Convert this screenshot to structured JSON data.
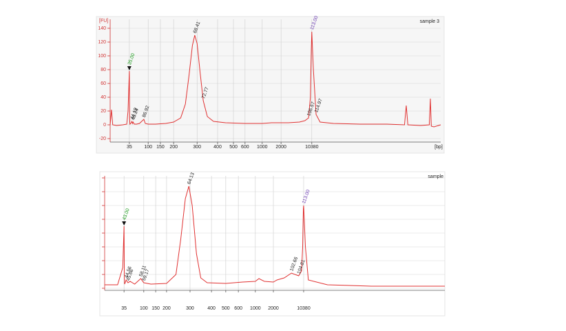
{
  "chart_data": [
    {
      "type": "line",
      "title": "sample 3",
      "ylabel": "[FU]",
      "xlabel": "[bp]",
      "color": "#e03030",
      "grid": true,
      "ytick_labels": true,
      "xlim": [
        20,
        20000
      ],
      "xticks": [
        35,
        100,
        150,
        200,
        300,
        400,
        500,
        600,
        1000,
        2000,
        10380
      ],
      "ylim": [
        -20,
        140
      ],
      "yticks": [
        -20,
        0,
        20,
        40,
        60,
        80,
        100,
        120,
        140
      ],
      "x": [
        20,
        21,
        22,
        25,
        30,
        33,
        34,
        35,
        36,
        37,
        40,
        44,
        46,
        48,
        52,
        60,
        70,
        85,
        90,
        100,
        130,
        170,
        200,
        230,
        250,
        265,
        280,
        290,
        300,
        315,
        330,
        350,
        380,
        450,
        600,
        1000,
        1500,
        2000,
        4000,
        7000,
        8500,
        9500,
        10000,
        10250,
        10380,
        10500,
        10700,
        11000,
        12000,
        14000,
        16000,
        17300,
        17430,
        17550,
        18500,
        19150,
        19230,
        19300,
        19500,
        20000
      ],
      "values": [
        0,
        22,
        0,
        -1,
        0,
        1,
        20,
        78,
        10,
        1,
        2,
        5,
        2,
        4,
        1,
        1,
        2,
        8,
        2,
        1,
        1,
        2,
        4,
        10,
        30,
        70,
        115,
        130,
        118,
        75,
        35,
        12,
        5,
        3,
        2,
        2,
        3,
        3,
        3,
        4,
        6,
        10,
        40,
        110,
        135,
        80,
        15,
        4,
        2,
        1,
        1,
        0,
        28,
        0,
        -1,
        0,
        38,
        -2,
        -3,
        0
      ],
      "annotations": [
        {
          "text": "35.00",
          "x": 35,
          "y": 78,
          "color": "#1a9a1a",
          "marker": "triangle"
        },
        {
          "text": "44.19",
          "x": 44,
          "y": 5,
          "color": "#222222"
        },
        {
          "text": "48.24",
          "x": 48,
          "y": 4,
          "color": "#222222"
        },
        {
          "text": "86.92",
          "x": 85,
          "y": 8,
          "color": "#222222"
        },
        {
          "text": "68.41",
          "x": 290,
          "y": 130,
          "color": "#222222"
        },
        {
          "text": "72.77",
          "x": 330,
          "y": 35,
          "color": "#222222"
        },
        {
          "text": "106.57",
          "x": 9500,
          "y": 10,
          "color": "#222222"
        },
        {
          "text": "113.00",
          "x": 10380,
          "y": 135,
          "color": "#6a3ab0"
        },
        {
          "text": "114.97",
          "x": 10700,
          "y": 15,
          "color": "#222222"
        }
      ]
    },
    {
      "type": "line",
      "title": "sample",
      "color": "#e03030",
      "grid": true,
      "ytick_labels": false,
      "xlim": [
        20,
        20000
      ],
      "xticks": [
        35,
        100,
        150,
        200,
        300,
        400,
        500,
        600,
        1000,
        2000,
        10380
      ],
      "ylim": [
        0,
        160
      ],
      "yticks": [
        0,
        20,
        40,
        60,
        80,
        100,
        120,
        140,
        160
      ],
      "x": [
        20,
        30,
        34,
        35,
        36,
        37,
        42,
        48,
        55,
        70,
        90,
        100,
        130,
        200,
        240,
        260,
        280,
        295,
        310,
        330,
        350,
        380,
        500,
        700,
        1000,
        1200,
        1500,
        2000,
        3000,
        5000,
        7000,
        9000,
        9800,
        10100,
        10300,
        10380,
        10500,
        10700,
        12000,
        15000,
        20000
      ],
      "values": [
        5,
        5,
        30,
        90,
        15,
        6,
        12,
        8,
        10,
        6,
        14,
        8,
        6,
        7,
        20,
        70,
        130,
        148,
        120,
        50,
        15,
        8,
        7,
        9,
        10,
        14,
        10,
        9,
        12,
        15,
        22,
        18,
        25,
        60,
        115,
        120,
        60,
        12,
        5,
        3,
        3
      ],
      "annotations": [
        {
          "text": "43.00",
          "x": 35,
          "y": 90,
          "color": "#1a9a1a",
          "marker": "triangle"
        },
        {
          "text": "44.56",
          "x": 42,
          "y": 12,
          "color": "#222222"
        },
        {
          "text": "45.66",
          "x": 48,
          "y": 8,
          "color": "#222222"
        },
        {
          "text": "58.11",
          "x": 90,
          "y": 14,
          "color": "#222222"
        },
        {
          "text": "59.17",
          "x": 100,
          "y": 8,
          "color": "#222222"
        },
        {
          "text": "64.13",
          "x": 295,
          "y": 148,
          "color": "#222222"
        },
        {
          "text": "102.66",
          "x": 7000,
          "y": 22,
          "color": "#222222"
        },
        {
          "text": "104.81",
          "x": 9000,
          "y": 18,
          "color": "#222222"
        },
        {
          "text": "113.00",
          "x": 10380,
          "y": 120,
          "color": "#6a3ab0"
        }
      ]
    }
  ]
}
